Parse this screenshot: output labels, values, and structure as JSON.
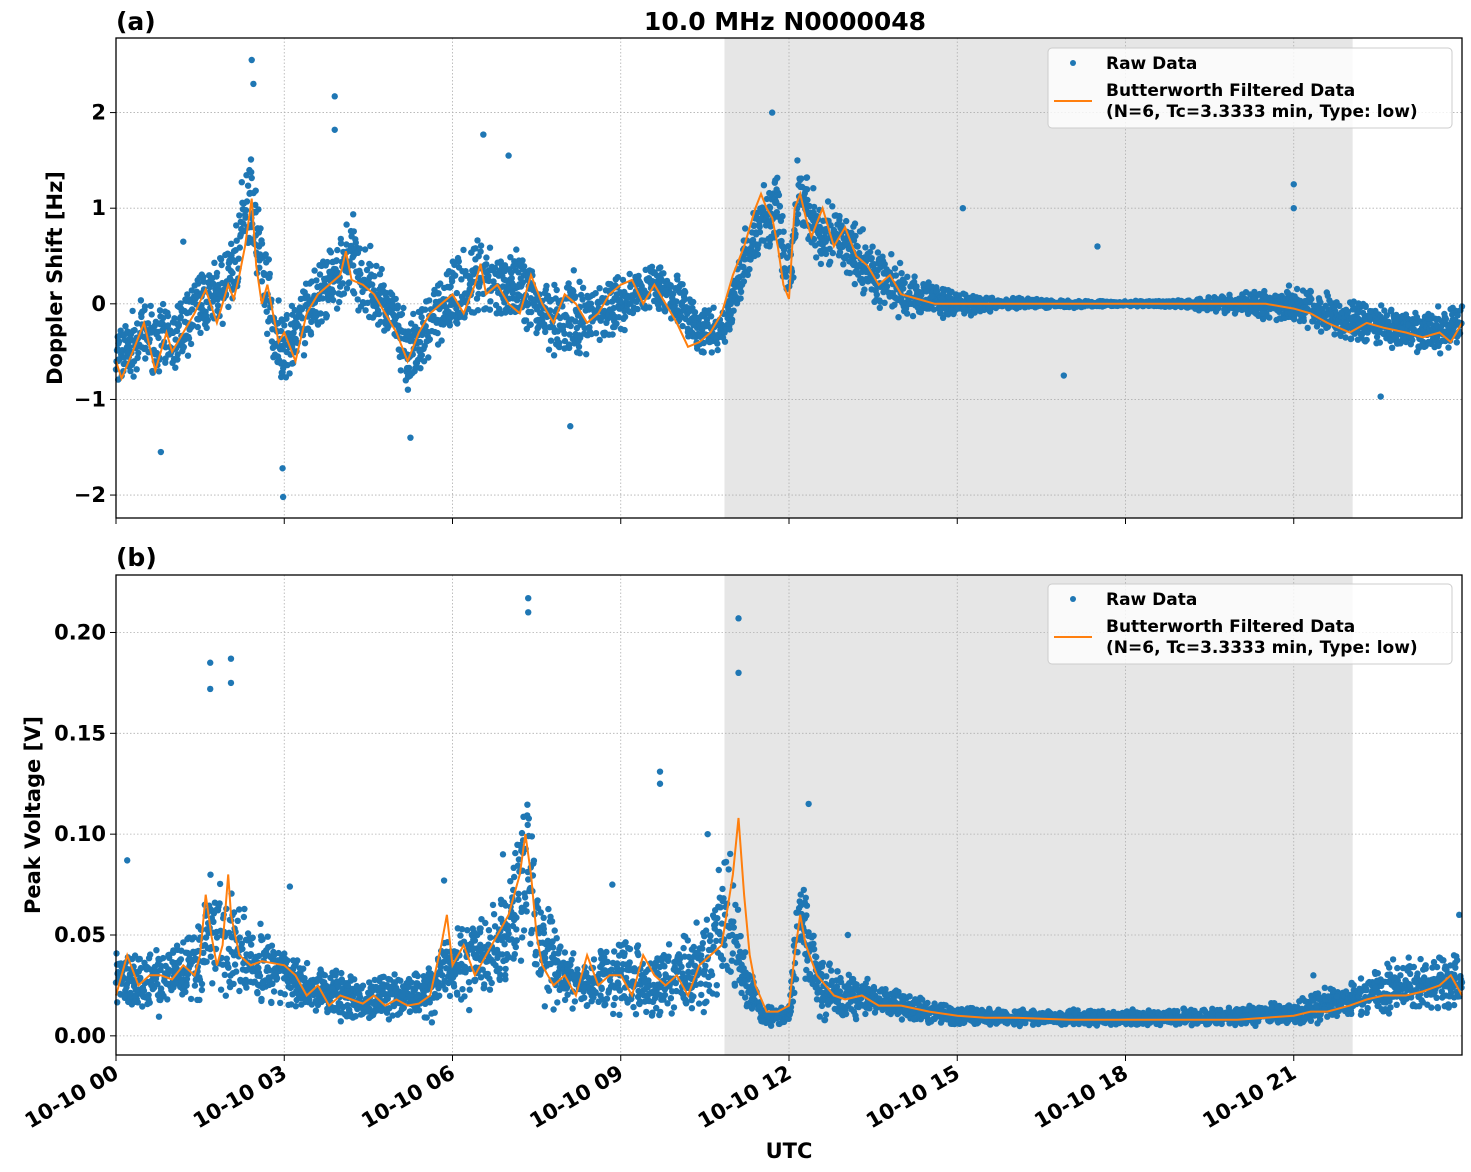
{
  "chart_data": [
    {
      "type": "scatter",
      "panel_label": "(a)",
      "title": "10.0 MHz N0000048",
      "xlabel": "",
      "ylabel": "Doppler Shift [Hz]",
      "xlim_hours": [
        0,
        24
      ],
      "ylim": [
        -2.24,
        2.78
      ],
      "grid": true,
      "yticks": [
        -2,
        -1,
        0,
        1,
        2
      ],
      "ytick_labels": [
        "−2",
        "−1",
        "0",
        "1",
        "2"
      ],
      "shaded_region_hours": [
        10.85,
        22.05
      ],
      "shade_color": "#e6e6e6",
      "legend_position": "top-right",
      "series": [
        {
          "name": "Raw Data",
          "kind": "scatter",
          "color": "#1f77b4",
          "x_hours": [
            0,
            0.5,
            1,
            1.5,
            2,
            2.4,
            2.5,
            2.8,
            3,
            3.5,
            4,
            4.2,
            4.5,
            5,
            5.2,
            5.5,
            6,
            6.5,
            7,
            7.5,
            8,
            8.5,
            9,
            9.5,
            10,
            10.4,
            10.8,
            11.2,
            11.5,
            11.8,
            12,
            12.2,
            12.5,
            13,
            13.5,
            14,
            14.5,
            15,
            16,
            17,
            18,
            19,
            20,
            21,
            21.5,
            22,
            22.5,
            23,
            23.5,
            24
          ],
          "values": [
            -0.6,
            -0.3,
            -0.4,
            0.0,
            0.2,
            1.1,
            0.8,
            -0.2,
            -0.5,
            0.0,
            0.3,
            0.5,
            0.2,
            -0.2,
            -0.6,
            -0.3,
            0.1,
            0.3,
            0.2,
            0.0,
            -0.2,
            -0.1,
            0.0,
            0.2,
            0.1,
            -0.3,
            -0.3,
            0.4,
            0.9,
            1.0,
            0.2,
            1.1,
            0.8,
            0.6,
            0.3,
            0.1,
            0.05,
            0.0,
            0.0,
            0.0,
            0.0,
            0.0,
            0.0,
            0.0,
            -0.1,
            -0.2,
            -0.2,
            -0.3,
            -0.3,
            -0.2
          ],
          "spread": [
            0.45,
            0.45,
            0.45,
            0.45,
            0.5,
            0.8,
            0.6,
            0.5,
            0.5,
            0.5,
            0.6,
            0.6,
            0.5,
            0.5,
            0.5,
            0.5,
            0.5,
            0.5,
            0.5,
            0.5,
            0.6,
            0.5,
            0.4,
            0.35,
            0.35,
            0.3,
            0.3,
            0.4,
            0.5,
            0.5,
            0.5,
            0.5,
            0.5,
            0.5,
            0.45,
            0.35,
            0.25,
            0.15,
            0.08,
            0.05,
            0.04,
            0.05,
            0.15,
            0.25,
            0.3,
            0.3,
            0.3,
            0.3,
            0.3,
            0.3
          ],
          "outliers": [
            {
              "x_hours": 2.42,
              "value": 2.55
            },
            {
              "x_hours": 2.45,
              "value": 2.3
            },
            {
              "x_hours": 3.9,
              "value": 2.17
            },
            {
              "x_hours": 3.9,
              "value": 1.82
            },
            {
              "x_hours": 2.98,
              "value": -2.02
            },
            {
              "x_hours": 2.97,
              "value": -1.72
            },
            {
              "x_hours": 0.8,
              "value": -1.55
            },
            {
              "x_hours": 6.55,
              "value": 1.77
            },
            {
              "x_hours": 7.0,
              "value": 1.55
            },
            {
              "x_hours": 5.25,
              "value": -1.4
            },
            {
              "x_hours": 8.1,
              "value": -1.28
            },
            {
              "x_hours": 11.7,
              "value": 2.0
            },
            {
              "x_hours": 12.15,
              "value": 1.5
            },
            {
              "x_hours": 21.0,
              "value": 1.25
            },
            {
              "x_hours": 21.0,
              "value": 1.0
            },
            {
              "x_hours": 15.1,
              "value": 1.0
            },
            {
              "x_hours": 16.9,
              "value": -0.75
            },
            {
              "x_hours": 22.55,
              "value": -0.97
            },
            {
              "x_hours": 1.2,
              "value": 0.65
            },
            {
              "x_hours": 17.5,
              "value": 0.6
            }
          ]
        },
        {
          "name": "Butterworth Filtered Data\n(N=6, Tc=3.3333 min, Type: low)",
          "kind": "line",
          "color": "#ff7f0e",
          "x_hours": [
            0,
            0.1,
            0.3,
            0.5,
            0.7,
            0.9,
            1.0,
            1.2,
            1.4,
            1.6,
            1.8,
            2.0,
            2.1,
            2.2,
            2.3,
            2.42,
            2.5,
            2.6,
            2.7,
            2.8,
            2.9,
            3.0,
            3.2,
            3.4,
            3.6,
            3.8,
            4.0,
            4.1,
            4.2,
            4.4,
            4.6,
            4.8,
            5.0,
            5.2,
            5.4,
            5.6,
            5.8,
            6.0,
            6.2,
            6.4,
            6.5,
            6.6,
            6.8,
            7.0,
            7.2,
            7.4,
            7.6,
            7.8,
            8.0,
            8.2,
            8.4,
            8.6,
            8.8,
            9.0,
            9.2,
            9.4,
            9.6,
            9.8,
            10.0,
            10.2,
            10.4,
            10.6,
            10.8,
            11.0,
            11.2,
            11.4,
            11.5,
            11.6,
            11.7,
            11.8,
            11.9,
            12.0,
            12.1,
            12.2,
            12.3,
            12.4,
            12.6,
            12.8,
            13.0,
            13.2,
            13.4,
            13.6,
            13.8,
            14.0,
            14.3,
            14.6,
            15.0,
            15.5,
            16.0,
            17.0,
            18.0,
            19.0,
            20.0,
            20.5,
            21.0,
            21.3,
            21.6,
            22.0,
            22.3,
            22.6,
            23.0,
            23.3,
            23.6,
            23.8,
            24.0
          ],
          "values": [
            -0.6,
            -0.78,
            -0.5,
            -0.2,
            -0.7,
            -0.3,
            -0.5,
            -0.3,
            -0.1,
            0.15,
            -0.2,
            0.2,
            0.05,
            0.3,
            0.6,
            1.1,
            0.4,
            0.0,
            0.2,
            -0.1,
            -0.4,
            -0.3,
            -0.6,
            -0.1,
            0.1,
            0.2,
            0.3,
            0.55,
            0.25,
            0.2,
            0.1,
            -0.1,
            -0.3,
            -0.6,
            -0.3,
            -0.1,
            0.0,
            0.1,
            -0.1,
            0.2,
            0.42,
            0.1,
            0.2,
            0.0,
            -0.1,
            0.3,
            0.0,
            -0.2,
            0.1,
            0.0,
            -0.2,
            -0.1,
            0.1,
            0.2,
            0.25,
            0.0,
            0.2,
            0.0,
            -0.2,
            -0.45,
            -0.4,
            -0.3,
            -0.1,
            0.3,
            0.6,
            1.0,
            1.15,
            1.0,
            0.9,
            0.6,
            0.2,
            0.05,
            1.0,
            1.15,
            0.9,
            0.7,
            1.0,
            0.6,
            0.8,
            0.5,
            0.4,
            0.2,
            0.3,
            0.1,
            0.05,
            0.0,
            0.0,
            0.0,
            0.0,
            0.0,
            0.0,
            0.0,
            0.0,
            0.0,
            -0.05,
            -0.1,
            -0.2,
            -0.3,
            -0.2,
            -0.25,
            -0.3,
            -0.35,
            -0.3,
            -0.4,
            -0.2
          ]
        }
      ]
    },
    {
      "type": "scatter",
      "panel_label": "(b)",
      "xlabel": "UTC",
      "ylabel": "Peak Voltage [V]",
      "xlim_hours": [
        0,
        24
      ],
      "ylim": [
        -0.0095,
        0.2285
      ],
      "grid": true,
      "yticks": [
        0.0,
        0.05,
        0.1,
        0.15,
        0.2
      ],
      "ytick_labels": [
        "0.00",
        "0.05",
        "0.10",
        "0.15",
        "0.20"
      ],
      "xticks_hours": [
        0,
        3,
        6,
        9,
        12,
        15,
        18,
        21
      ],
      "xtick_labels": [
        "10-10 00",
        "10-10 03",
        "10-10 06",
        "10-10 09",
        "10-10 12",
        "10-10 15",
        "10-10 18",
        "10-10 21"
      ],
      "shaded_region_hours": [
        10.85,
        22.05
      ],
      "shade_color": "#e6e6e6",
      "legend_position": "top-right",
      "series": [
        {
          "name": "Raw Data",
          "kind": "scatter",
          "color": "#1f77b4",
          "x_hours": [
            0,
            0.5,
            1,
            1.5,
            1.7,
            2.0,
            2.5,
            3,
            3.5,
            4,
            4.5,
            5,
            5.5,
            5.8,
            6,
            6.5,
            7,
            7.3,
            7.5,
            8,
            8.5,
            9,
            9.5,
            10,
            10.5,
            10.9,
            11.2,
            11.5,
            11.7,
            12,
            12.2,
            12.5,
            13,
            13.5,
            14,
            14.5,
            15,
            16,
            17,
            18,
            19,
            20,
            21,
            21.5,
            22,
            22.5,
            23,
            23.5,
            24
          ],
          "values": [
            0.026,
            0.028,
            0.03,
            0.035,
            0.055,
            0.045,
            0.035,
            0.03,
            0.022,
            0.02,
            0.018,
            0.02,
            0.02,
            0.03,
            0.035,
            0.04,
            0.05,
            0.09,
            0.05,
            0.028,
            0.025,
            0.03,
            0.025,
            0.03,
            0.035,
            0.06,
            0.03,
            0.01,
            0.01,
            0.01,
            0.06,
            0.025,
            0.02,
            0.018,
            0.015,
            0.012,
            0.01,
            0.009,
            0.009,
            0.009,
            0.009,
            0.01,
            0.012,
            0.015,
            0.018,
            0.022,
            0.025,
            0.025,
            0.028
          ],
          "spread": [
            0.018,
            0.02,
            0.02,
            0.025,
            0.04,
            0.035,
            0.025,
            0.02,
            0.015,
            0.015,
            0.014,
            0.015,
            0.015,
            0.025,
            0.025,
            0.03,
            0.035,
            0.06,
            0.04,
            0.02,
            0.02,
            0.025,
            0.02,
            0.025,
            0.03,
            0.05,
            0.02,
            0.006,
            0.006,
            0.006,
            0.04,
            0.02,
            0.015,
            0.012,
            0.01,
            0.008,
            0.006,
            0.005,
            0.005,
            0.005,
            0.005,
            0.006,
            0.008,
            0.01,
            0.012,
            0.015,
            0.018,
            0.018,
            0.02
          ],
          "outliers": [
            {
              "x_hours": 7.35,
              "value": 0.217
            },
            {
              "x_hours": 7.35,
              "value": 0.21
            },
            {
              "x_hours": 11.1,
              "value": 0.207
            },
            {
              "x_hours": 11.1,
              "value": 0.18
            },
            {
              "x_hours": 1.68,
              "value": 0.185
            },
            {
              "x_hours": 2.05,
              "value": 0.187
            },
            {
              "x_hours": 2.05,
              "value": 0.175
            },
            {
              "x_hours": 1.68,
              "value": 0.172
            },
            {
              "x_hours": 9.7,
              "value": 0.131
            },
            {
              "x_hours": 9.7,
              "value": 0.125
            },
            {
              "x_hours": 12.35,
              "value": 0.115
            },
            {
              "x_hours": 10.55,
              "value": 0.1
            },
            {
              "x_hours": 0.2,
              "value": 0.087
            },
            {
              "x_hours": 6.9,
              "value": 0.09
            },
            {
              "x_hours": 5.85,
              "value": 0.077
            },
            {
              "x_hours": 8.85,
              "value": 0.075
            },
            {
              "x_hours": 3.1,
              "value": 0.074
            },
            {
              "x_hours": 13.05,
              "value": 0.05
            },
            {
              "x_hours": 21.35,
              "value": 0.03
            },
            {
              "x_hours": 23.95,
              "value": 0.06
            }
          ]
        },
        {
          "name": "Butterworth Filtered Data\n(N=6, Tc=3.3333 min, Type: low)",
          "kind": "line",
          "color": "#ff7f0e",
          "x_hours": [
            0,
            0.1,
            0.2,
            0.4,
            0.6,
            0.8,
            1.0,
            1.2,
            1.4,
            1.5,
            1.6,
            1.7,
            1.8,
            1.9,
            2.0,
            2.05,
            2.2,
            2.4,
            2.6,
            2.8,
            3.0,
            3.2,
            3.4,
            3.6,
            3.8,
            4.0,
            4.2,
            4.4,
            4.6,
            4.8,
            5.0,
            5.2,
            5.4,
            5.6,
            5.8,
            5.9,
            6.0,
            6.2,
            6.4,
            6.6,
            6.8,
            7.0,
            7.2,
            7.3,
            7.4,
            7.5,
            7.6,
            7.8,
            8.0,
            8.2,
            8.4,
            8.6,
            8.8,
            9.0,
            9.2,
            9.4,
            9.6,
            9.8,
            10.0,
            10.2,
            10.4,
            10.6,
            10.8,
            11.0,
            11.1,
            11.2,
            11.3,
            11.4,
            11.6,
            11.8,
            12.0,
            12.1,
            12.2,
            12.3,
            12.5,
            12.8,
            13.0,
            13.3,
            13.6,
            14.0,
            14.5,
            15.0,
            15.5,
            16.0,
            17.0,
            18.0,
            19.0,
            20.0,
            20.5,
            21.0,
            21.3,
            21.6,
            22.0,
            22.3,
            22.6,
            23.0,
            23.3,
            23.6,
            23.8,
            24.0
          ],
          "values": [
            0.02,
            0.03,
            0.04,
            0.025,
            0.03,
            0.03,
            0.028,
            0.035,
            0.03,
            0.04,
            0.07,
            0.05,
            0.035,
            0.045,
            0.08,
            0.06,
            0.04,
            0.035,
            0.037,
            0.036,
            0.035,
            0.03,
            0.02,
            0.025,
            0.015,
            0.02,
            0.018,
            0.016,
            0.02,
            0.015,
            0.018,
            0.015,
            0.016,
            0.02,
            0.045,
            0.06,
            0.035,
            0.045,
            0.03,
            0.04,
            0.05,
            0.06,
            0.08,
            0.1,
            0.08,
            0.05,
            0.035,
            0.025,
            0.03,
            0.02,
            0.04,
            0.025,
            0.03,
            0.03,
            0.02,
            0.04,
            0.03,
            0.025,
            0.03,
            0.02,
            0.035,
            0.04,
            0.045,
            0.08,
            0.108,
            0.07,
            0.04,
            0.025,
            0.012,
            0.012,
            0.015,
            0.04,
            0.06,
            0.045,
            0.03,
            0.02,
            0.018,
            0.02,
            0.015,
            0.015,
            0.012,
            0.01,
            0.009,
            0.009,
            0.008,
            0.008,
            0.008,
            0.008,
            0.009,
            0.01,
            0.012,
            0.012,
            0.015,
            0.018,
            0.02,
            0.02,
            0.022,
            0.025,
            0.03,
            0.02
          ]
        }
      ]
    }
  ],
  "legend": {
    "raw_label": "Raw Data",
    "filtered_label_line1": "Butterworth Filtered Data",
    "filtered_label_line2": "(N=6, Tc=3.3333 min, Type: low)"
  }
}
